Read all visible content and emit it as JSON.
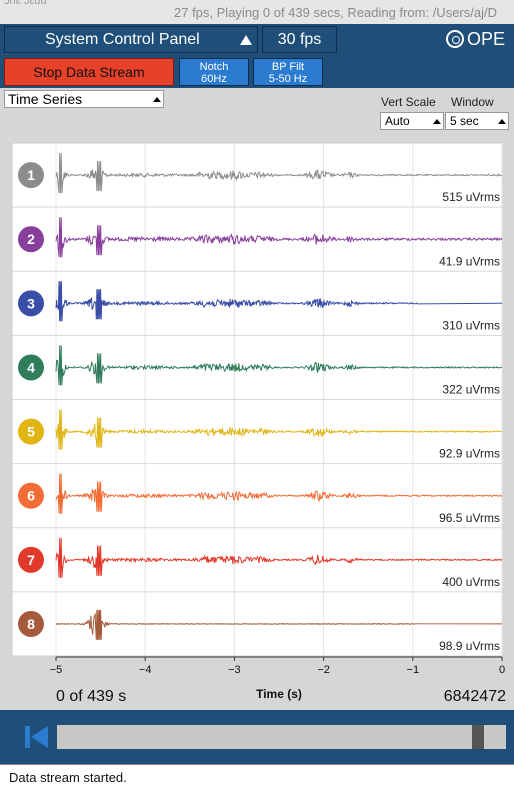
{
  "window": {
    "title": "27 fps, Playing 0 of 439 secs, Reading from: /Users/aj/D"
  },
  "top_bar": {
    "system_control_panel_label": "System Control Panel",
    "fps_label": "30 fps",
    "logo_text": "OPE"
  },
  "control_bar": {
    "stop_stream_label": "Stop Data Stream",
    "notch_line1": "Notch",
    "notch_line2": "60Hz",
    "bpfilt_line1": "BP Filt",
    "bpfilt_line2": "5-50 Hz"
  },
  "widget": {
    "type_selected": "Time Series",
    "vert_scale_label": "Vert Scale",
    "window_label": "Window",
    "vert_scale_value": "Auto",
    "window_value": "5 sec"
  },
  "chart_data": {
    "type": "line",
    "xlabel": "Time (s)",
    "x_ticks": [
      "-5",
      "-4",
      "-3",
      "-2",
      "-1",
      "0"
    ],
    "xlim": [
      -5,
      0
    ],
    "grid": true,
    "channels": [
      {
        "number": "1",
        "color": "#8c8c8c",
        "rms": "515 uVrms"
      },
      {
        "number": "2",
        "color": "#883e9b",
        "rms": "41.9 uVrms"
      },
      {
        "number": "3",
        "color": "#3a4ea8",
        "rms": "310 uVrms"
      },
      {
        "number": "4",
        "color": "#2f7d5a",
        "rms": "322 uVrms"
      },
      {
        "number": "5",
        "color": "#e0b514",
        "rms": "92.9 uVrms"
      },
      {
        "number": "6",
        "color": "#f36b35",
        "rms": "96.5 uVrms"
      },
      {
        "number": "7",
        "color": "#e23a2a",
        "rms": "400 uVrms"
      },
      {
        "number": "8",
        "color": "#a55a3c",
        "rms": "98.9 uVrms"
      }
    ]
  },
  "playback": {
    "position_text": "0 of 439 s",
    "sample_count": "6842472",
    "scrub_position": 0.95
  },
  "status": {
    "message": "Data stream started."
  }
}
